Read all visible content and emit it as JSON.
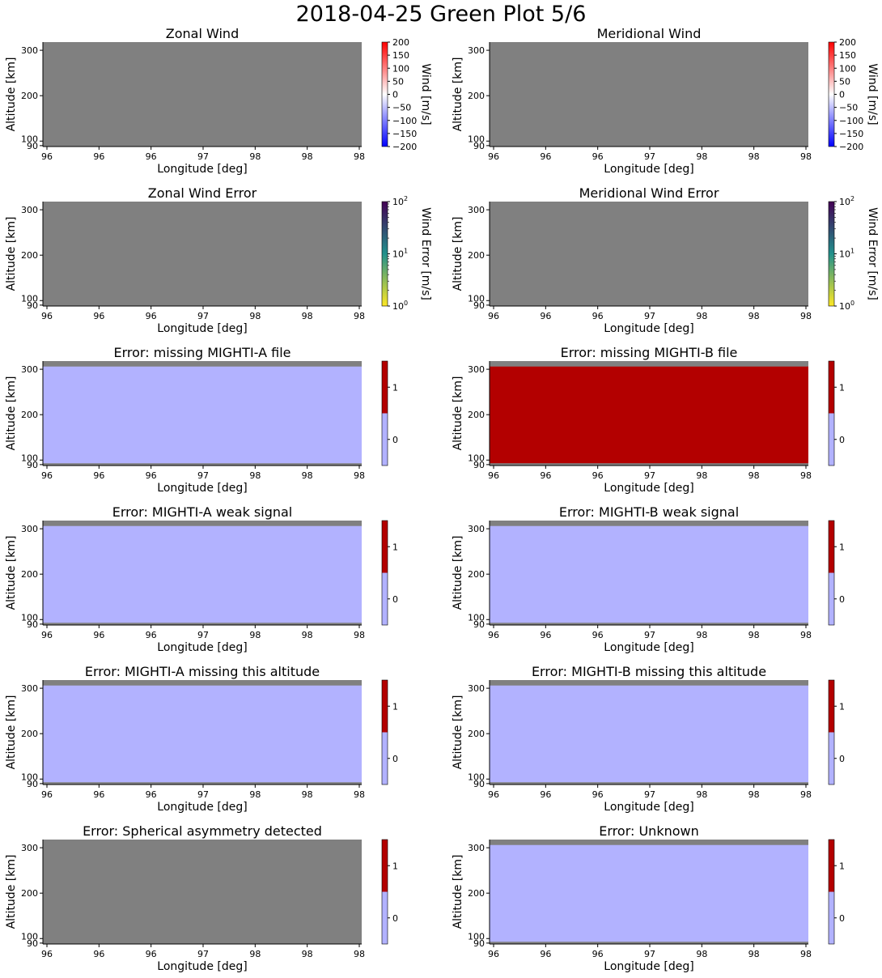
{
  "figure_title": "2018-04-25 Green Plot 5/6",
  "colors": {
    "missing": "#808080",
    "flag_zero": "#b2b2ff",
    "flag_one": "#b30000",
    "wind_low": "#0000ff",
    "wind_mid": "#ffffff",
    "wind_high": "#ff0000",
    "error_low": "#fde725",
    "error_mid": "#21918c",
    "error_high": "#440154"
  },
  "chart_data": [
    {
      "type": "heatmap",
      "title": "Zonal Wind",
      "xlabel": "Longitude [deg]",
      "ylabel": "Altitude [km]",
      "xticks": [
        "96",
        "96",
        "96",
        "97",
        "98",
        "98",
        "98"
      ],
      "yticks": [
        "90",
        "100",
        "200",
        "300"
      ],
      "ylim": [
        88,
        318
      ],
      "data_band": [],
      "colorbar": {
        "type": "diverging",
        "label": "Wind [m/s]",
        "range": [
          -200,
          200
        ],
        "ticks": [
          "200",
          "150",
          "100",
          "50",
          "0",
          "−50",
          "−100",
          "−150",
          "−200"
        ]
      }
    },
    {
      "type": "heatmap",
      "title": "Meridional Wind",
      "xlabel": "Longitude [deg]",
      "ylabel": "Altitude [km]",
      "xticks": [
        "96",
        "96",
        "96",
        "97",
        "98",
        "98",
        "98"
      ],
      "yticks": [
        "90",
        "100",
        "200",
        "300"
      ],
      "ylim": [
        88,
        318
      ],
      "data_band": [],
      "colorbar": {
        "type": "diverging",
        "label": "Wind [m/s]",
        "range": [
          -200,
          200
        ],
        "ticks": [
          "200",
          "150",
          "100",
          "50",
          "0",
          "−50",
          "−100",
          "−150",
          "−200"
        ]
      }
    },
    {
      "type": "heatmap",
      "title": "Zonal Wind Error",
      "xlabel": "Longitude [deg]",
      "ylabel": "Altitude [km]",
      "xticks": [
        "96",
        "96",
        "96",
        "97",
        "98",
        "98",
        "98"
      ],
      "yticks": [
        "90",
        "100",
        "200",
        "300"
      ],
      "ylim": [
        88,
        318
      ],
      "data_band": [],
      "colorbar": {
        "type": "log",
        "label": "Wind Error [m/s]",
        "range": [
          1,
          100
        ],
        "scale": "log",
        "ticks": [
          "10",
          "10",
          "10"
        ],
        "exponents": [
          "2",
          "1",
          "0"
        ]
      }
    },
    {
      "type": "heatmap",
      "title": "Meridional Wind Error",
      "xlabel": "Longitude [deg]",
      "ylabel": "Altitude [km]",
      "xticks": [
        "96",
        "96",
        "96",
        "97",
        "98",
        "98",
        "98"
      ],
      "yticks": [
        "90",
        "100",
        "200",
        "300"
      ],
      "ylim": [
        88,
        318
      ],
      "data_band": [],
      "colorbar": {
        "type": "log",
        "label": "Wind Error [m/s]",
        "range": [
          1,
          100
        ],
        "scale": "log",
        "ticks": [
          "10",
          "10",
          "10"
        ],
        "exponents": [
          "2",
          "1",
          "0"
        ]
      }
    },
    {
      "type": "heatmap",
      "title": "Error: missing MIGHTI-A file",
      "xlabel": "Longitude [deg]",
      "ylabel": "Altitude [km]",
      "xticks": [
        "96",
        "96",
        "96",
        "97",
        "98",
        "98",
        "98"
      ],
      "yticks": [
        "90",
        "100",
        "200",
        "300"
      ],
      "ylim": [
        88,
        318
      ],
      "data_band": [
        93,
        306
      ],
      "value": 0,
      "colorbar": {
        "type": "binary",
        "range": [
          -0.5,
          1.5
        ],
        "ticks": [
          "1",
          "0"
        ]
      }
    },
    {
      "type": "heatmap",
      "title": "Error: missing MIGHTI-B file",
      "xlabel": "Longitude [deg]",
      "ylabel": "Altitude [km]",
      "xticks": [
        "96",
        "96",
        "96",
        "97",
        "98",
        "98",
        "98"
      ],
      "yticks": [
        "90",
        "100",
        "200",
        "300"
      ],
      "ylim": [
        88,
        318
      ],
      "data_band": [
        93,
        306
      ],
      "value": 1,
      "colorbar": {
        "type": "binary",
        "range": [
          -0.5,
          1.5
        ],
        "ticks": [
          "1",
          "0"
        ]
      }
    },
    {
      "type": "heatmap",
      "title": "Error: MIGHTI-A weak signal",
      "xlabel": "Longitude [deg]",
      "ylabel": "Altitude [km]",
      "xticks": [
        "96",
        "96",
        "96",
        "97",
        "98",
        "98",
        "98"
      ],
      "yticks": [
        "90",
        "100",
        "200",
        "300"
      ],
      "ylim": [
        88,
        318
      ],
      "data_band": [
        93,
        306
      ],
      "value": 0,
      "colorbar": {
        "type": "binary",
        "range": [
          -0.5,
          1.5
        ],
        "ticks": [
          "1",
          "0"
        ]
      }
    },
    {
      "type": "heatmap",
      "title": "Error: MIGHTI-B weak signal",
      "xlabel": "Longitude [deg]",
      "ylabel": "Altitude [km]",
      "xticks": [
        "96",
        "96",
        "96",
        "97",
        "98",
        "98",
        "98"
      ],
      "yticks": [
        "90",
        "100",
        "200",
        "300"
      ],
      "ylim": [
        88,
        318
      ],
      "data_band": [
        93,
        306
      ],
      "value": 0,
      "colorbar": {
        "type": "binary",
        "range": [
          -0.5,
          1.5
        ],
        "ticks": [
          "1",
          "0"
        ]
      }
    },
    {
      "type": "heatmap",
      "title": "Error: MIGHTI-A missing this altitude",
      "xlabel": "Longitude [deg]",
      "ylabel": "Altitude [km]",
      "xticks": [
        "96",
        "96",
        "96",
        "97",
        "98",
        "98",
        "98"
      ],
      "yticks": [
        "90",
        "100",
        "200",
        "300"
      ],
      "ylim": [
        88,
        318
      ],
      "data_band": [
        93,
        306
      ],
      "value": 0,
      "colorbar": {
        "type": "binary",
        "range": [
          -0.5,
          1.5
        ],
        "ticks": [
          "1",
          "0"
        ]
      }
    },
    {
      "type": "heatmap",
      "title": "Error: MIGHTI-B missing this altitude",
      "xlabel": "Longitude [deg]",
      "ylabel": "Altitude [km]",
      "xticks": [
        "96",
        "96",
        "96",
        "97",
        "98",
        "98",
        "98"
      ],
      "yticks": [
        "90",
        "100",
        "200",
        "300"
      ],
      "ylim": [
        88,
        318
      ],
      "data_band": [
        93,
        306
      ],
      "value": 0,
      "colorbar": {
        "type": "binary",
        "range": [
          -0.5,
          1.5
        ],
        "ticks": [
          "1",
          "0"
        ]
      }
    },
    {
      "type": "heatmap",
      "title": "Error: Spherical asymmetry detected",
      "xlabel": "Longitude [deg]",
      "ylabel": "Altitude [km]",
      "xticks": [
        "96",
        "96",
        "96",
        "97",
        "98",
        "98",
        "98"
      ],
      "yticks": [
        "90",
        "100",
        "200",
        "300"
      ],
      "ylim": [
        88,
        318
      ],
      "data_band": [],
      "colorbar": {
        "type": "binary",
        "range": [
          -0.5,
          1.5
        ],
        "ticks": [
          "1",
          "0"
        ]
      }
    },
    {
      "type": "heatmap",
      "title": "Error: Unknown",
      "xlabel": "Longitude [deg]",
      "ylabel": "Altitude [km]",
      "xticks": [
        "96",
        "96",
        "96",
        "97",
        "98",
        "98",
        "98"
      ],
      "yticks": [
        "90",
        "100",
        "200",
        "300"
      ],
      "ylim": [
        88,
        318
      ],
      "data_band": [
        93,
        306
      ],
      "value": 0,
      "colorbar": {
        "type": "binary",
        "range": [
          -0.5,
          1.5
        ],
        "ticks": [
          "1",
          "0"
        ]
      }
    }
  ]
}
